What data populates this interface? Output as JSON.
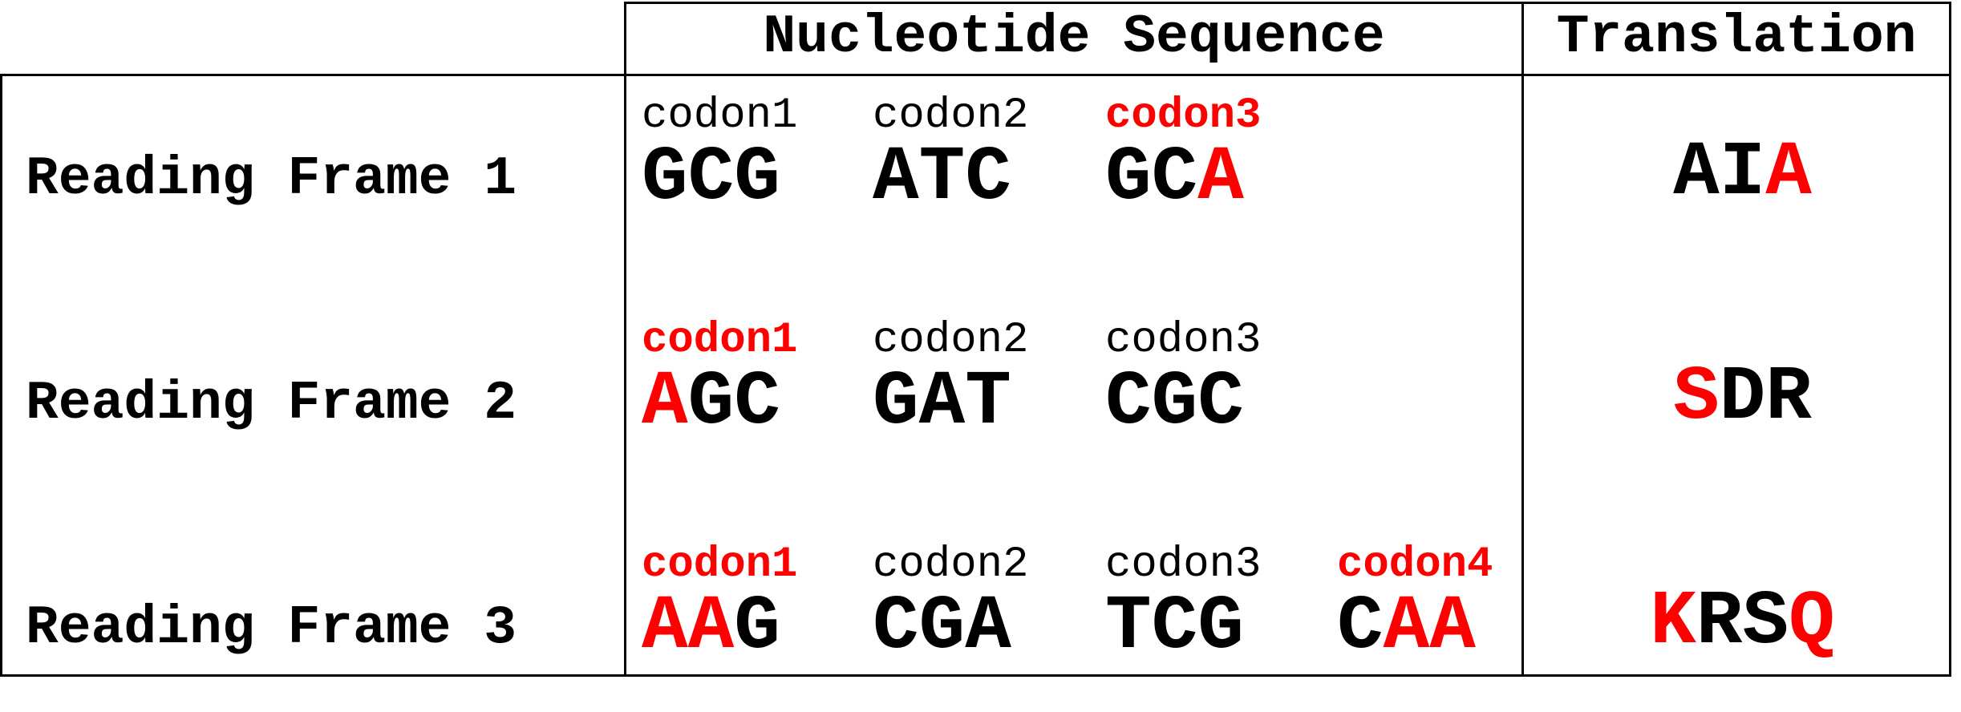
{
  "colors": {
    "highlight": "#ff0000",
    "text": "#000000"
  },
  "headers": {
    "sequence": "Nucleotide Sequence",
    "translation": "Translation"
  },
  "frames": [
    {
      "label": "Reading Frame 1",
      "codons": [
        {
          "label": "codon1",
          "label_highlight": false,
          "segments": [
            {
              "text": "GCG",
              "hl": false
            }
          ]
        },
        {
          "label": "codon2",
          "label_highlight": false,
          "segments": [
            {
              "text": "ATC",
              "hl": false
            }
          ]
        },
        {
          "label": "codon3",
          "label_highlight": true,
          "segments": [
            {
              "text": "GC",
              "hl": false
            },
            {
              "text": "A",
              "hl": true
            }
          ]
        }
      ],
      "translation": [
        {
          "text": "AI",
          "hl": false
        },
        {
          "text": "A",
          "hl": true
        }
      ]
    },
    {
      "label": "Reading Frame 2",
      "codons": [
        {
          "label": "codon1",
          "label_highlight": true,
          "segments": [
            {
              "text": "A",
              "hl": true
            },
            {
              "text": "GC",
              "hl": false
            }
          ]
        },
        {
          "label": "codon2",
          "label_highlight": false,
          "segments": [
            {
              "text": "GAT",
              "hl": false
            }
          ]
        },
        {
          "label": "codon3",
          "label_highlight": false,
          "segments": [
            {
              "text": "CGC",
              "hl": false
            }
          ]
        }
      ],
      "translation": [
        {
          "text": "S",
          "hl": true
        },
        {
          "text": "DR",
          "hl": false
        }
      ]
    },
    {
      "label": "Reading Frame 3",
      "codons": [
        {
          "label": "codon1",
          "label_highlight": true,
          "segments": [
            {
              "text": "AA",
              "hl": true
            },
            {
              "text": "G",
              "hl": false
            }
          ]
        },
        {
          "label": "codon2",
          "label_highlight": false,
          "segments": [
            {
              "text": "CGA",
              "hl": false
            }
          ]
        },
        {
          "label": "codon3",
          "label_highlight": false,
          "segments": [
            {
              "text": "TCG",
              "hl": false
            }
          ]
        },
        {
          "label": "codon4",
          "label_highlight": true,
          "segments": [
            {
              "text": "C",
              "hl": false
            },
            {
              "text": "AA",
              "hl": true
            }
          ]
        }
      ],
      "translation": [
        {
          "text": "K",
          "hl": true
        },
        {
          "text": "RS",
          "hl": false
        },
        {
          "text": "Q",
          "hl": true
        }
      ]
    }
  ]
}
